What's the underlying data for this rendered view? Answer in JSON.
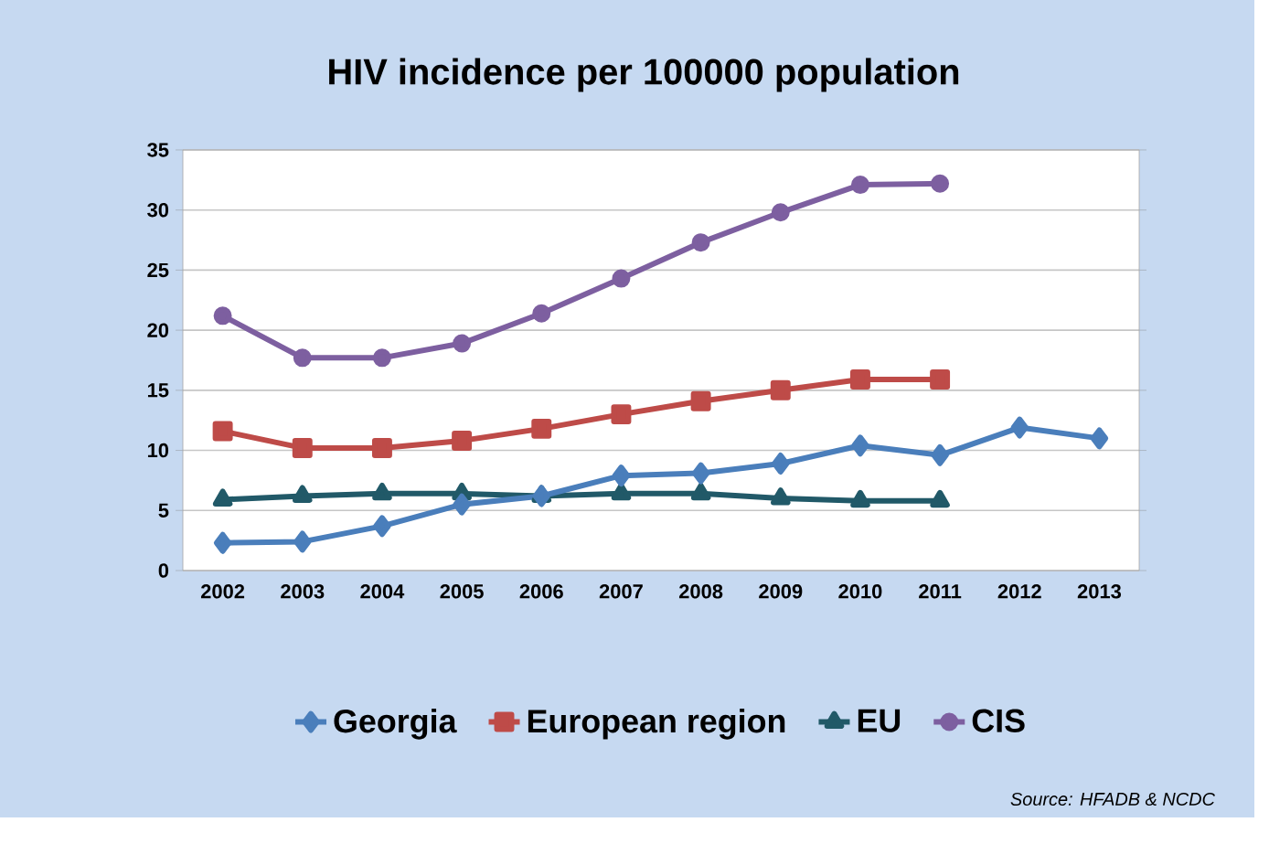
{
  "chart_data": {
    "type": "line",
    "title": "HIV incidence per 100000 population",
    "categories": [
      "2002",
      "2003",
      "2004",
      "2005",
      "2006",
      "2007",
      "2008",
      "2009",
      "2010",
      "2011",
      "2012",
      "2013"
    ],
    "series": [
      {
        "name": "Georgia",
        "color": "#4a7ebb",
        "marker": "diamond",
        "values": [
          2.3,
          2.4,
          3.7,
          5.5,
          6.2,
          7.9,
          8.1,
          8.9,
          10.4,
          9.6,
          11.9,
          11.0
        ]
      },
      {
        "name": "European region",
        "color": "#be4b48",
        "marker": "square",
        "values": [
          11.6,
          10.2,
          10.2,
          10.8,
          11.8,
          13.0,
          14.1,
          15.0,
          15.9,
          15.9,
          null,
          null
        ]
      },
      {
        "name": "EU",
        "color": "#215968",
        "marker": "triangle",
        "values": [
          5.9,
          6.2,
          6.4,
          6.4,
          6.2,
          6.4,
          6.4,
          6.0,
          5.8,
          5.8,
          null,
          null
        ]
      },
      {
        "name": "CIS",
        "color": "#7d5fa0",
        "marker": "circle",
        "values": [
          21.2,
          17.7,
          17.7,
          18.9,
          21.4,
          24.3,
          27.3,
          29.8,
          32.1,
          32.2,
          null,
          null
        ]
      }
    ],
    "ylim": [
      0,
      35
    ],
    "yticks": [
      0,
      5,
      10,
      15,
      20,
      25,
      30,
      35
    ],
    "grid": "y",
    "legend": "bottom",
    "line_style": "solid",
    "annotations": [
      "Source: HFADB & NCDC"
    ]
  }
}
